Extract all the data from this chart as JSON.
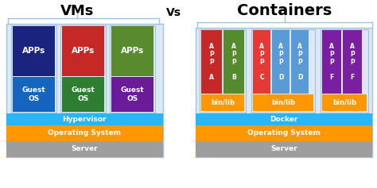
{
  "title_vms": "VMs",
  "title_vs": "Vs",
  "title_containers": "Containers",
  "bg_color": "#ffffff",
  "section_bg": "#dce9f5",
  "section_border": "#a0c4e0",
  "hypervisor_color": "#29b6f6",
  "docker_color": "#29b6f6",
  "os_color": "#ff9800",
  "server_color": "#9e9e9e",
  "vm_app_colors": [
    "#1a237e",
    "#c62828",
    "#5a8a2e"
  ],
  "vm_guest_colors": [
    "#1565c0",
    "#2e7d32",
    "#6a1b9a"
  ],
  "c_app_A": "#c62828",
  "c_app_B": "#558b2f",
  "c_app_C": "#e53935",
  "c_app_D": "#5b9bd5",
  "c_app_F": "#7b1fa2",
  "binlib_color": "#ff9800",
  "white": "#ffffff"
}
